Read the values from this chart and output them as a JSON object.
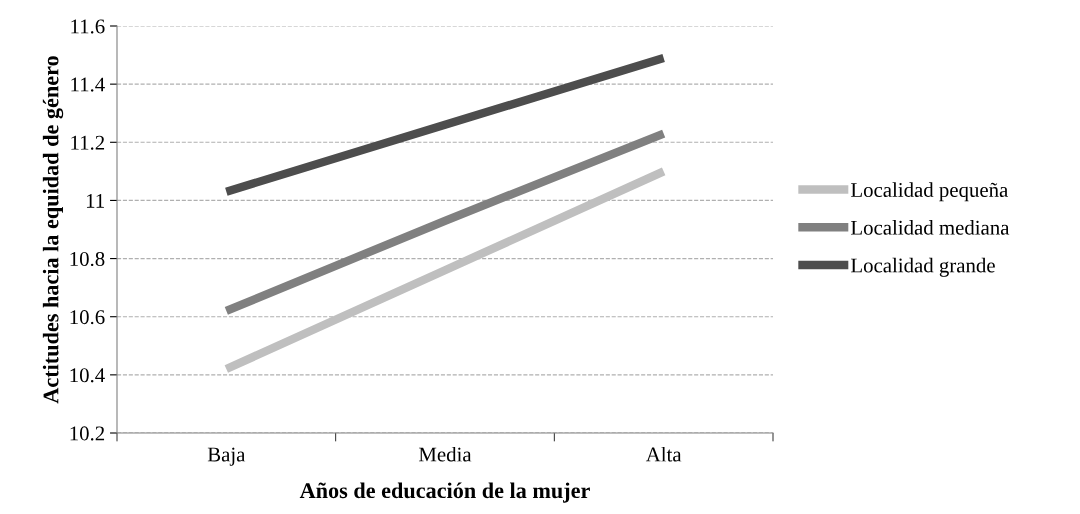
{
  "chart_data": {
    "type": "line",
    "xlabel": "Años de educación de la mujer",
    "ylabel": "Actitudes hacia la equidad de género",
    "categories": [
      "Baja",
      "Media",
      "Alta"
    ],
    "series": [
      {
        "name": "Localidad pequeña",
        "color": "#bfbfbf",
        "values": [
          10.42,
          10.76,
          11.1
        ]
      },
      {
        "name": "Localidad mediana",
        "color": "#808080",
        "values": [
          10.62,
          10.93,
          11.23
        ]
      },
      {
        "name": "Localidad grande",
        "color": "#4d4d4d",
        "values": [
          11.03,
          11.26,
          11.49
        ]
      }
    ],
    "ylim": [
      10.2,
      11.6
    ],
    "yticks": [
      {
        "value": 10.2,
        "label": "10.2"
      },
      {
        "value": 10.4,
        "label": "10.4"
      },
      {
        "value": 10.6,
        "label": "10.6"
      },
      {
        "value": 10.8,
        "label": "10.8"
      },
      {
        "value": 11,
        "label": "11"
      },
      {
        "value": 11.2,
        "label": "11.2"
      },
      {
        "value": 11.4,
        "label": "11.4"
      },
      {
        "value": 11.6,
        "label": "11.6"
      }
    ],
    "grid": "y",
    "legend": "right",
    "marker": "none",
    "line_style": "solid"
  }
}
